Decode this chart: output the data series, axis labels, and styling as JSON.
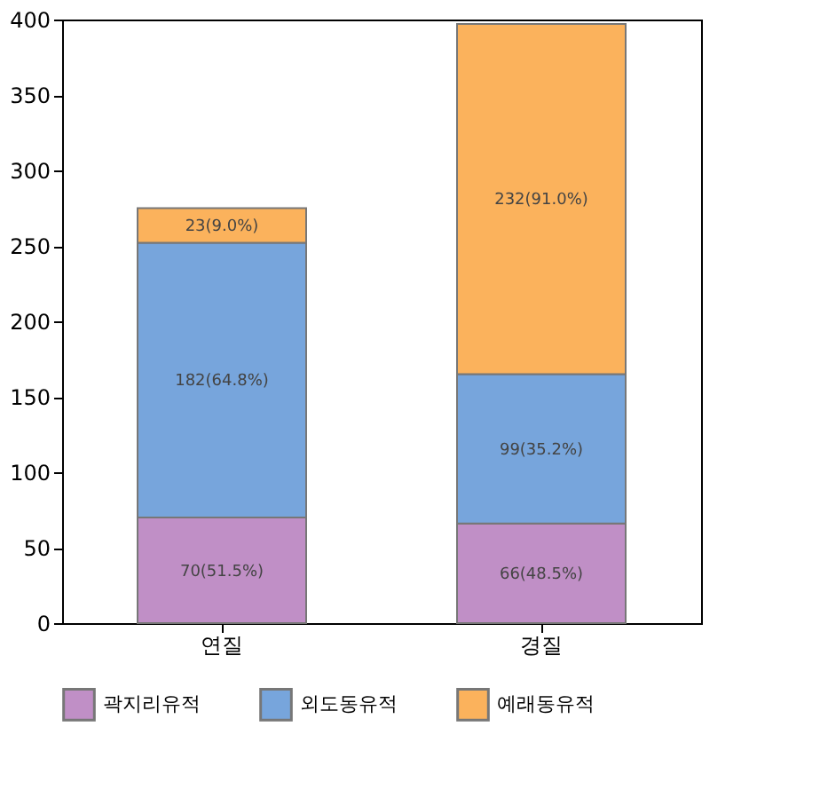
{
  "chart_data": {
    "type": "bar",
    "stacked": true,
    "categories": [
      "연질",
      "경질"
    ],
    "series": [
      {
        "name": "곽지리유적",
        "color": "#c08fc6",
        "values": [
          70,
          66
        ],
        "value_labels": [
          "70(51.5%)",
          "66(48.5%)"
        ]
      },
      {
        "name": "외도동유적",
        "color": "#77a5dc",
        "values": [
          182,
          99
        ],
        "value_labels": [
          "182(64.8%)",
          "99(35.2%)"
        ]
      },
      {
        "name": "예래동유적",
        "color": "#fbb25c",
        "values": [
          23,
          232
        ],
        "value_labels": [
          "23(9.0%)",
          "232(91.0%)"
        ]
      }
    ],
    "ylim": [
      0,
      400
    ],
    "yticks": [
      0,
      50,
      100,
      150,
      200,
      250,
      300,
      350,
      400
    ],
    "grid": false,
    "legend": "bottom"
  }
}
